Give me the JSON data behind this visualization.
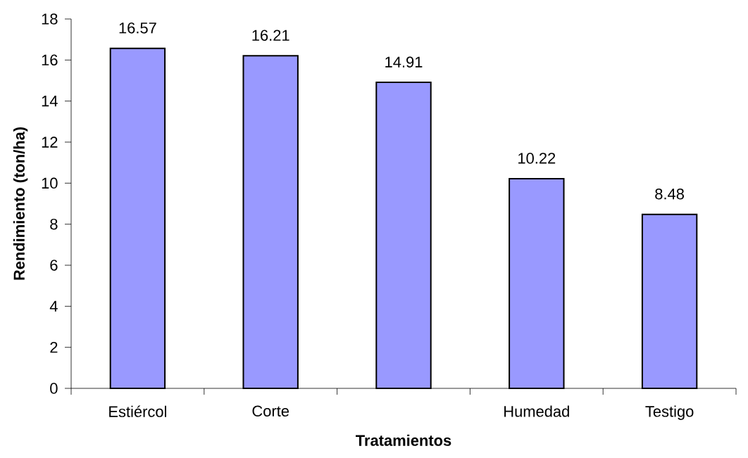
{
  "chart_data": {
    "type": "bar",
    "xlabel": "Tratamientos",
    "ylabel": "Rendimiento (ton/ha)",
    "categories": [
      "Estiércol",
      "Corte",
      null,
      "Humedad",
      "Testigo"
    ],
    "values": [
      16.57,
      16.21,
      14.91,
      10.22,
      8.48
    ],
    "color": "#9999ff",
    "ylim": [
      0,
      18
    ],
    "yticks": [
      0,
      2,
      4,
      6,
      8,
      10,
      12,
      14,
      16,
      18
    ],
    "data_labels": true
  }
}
